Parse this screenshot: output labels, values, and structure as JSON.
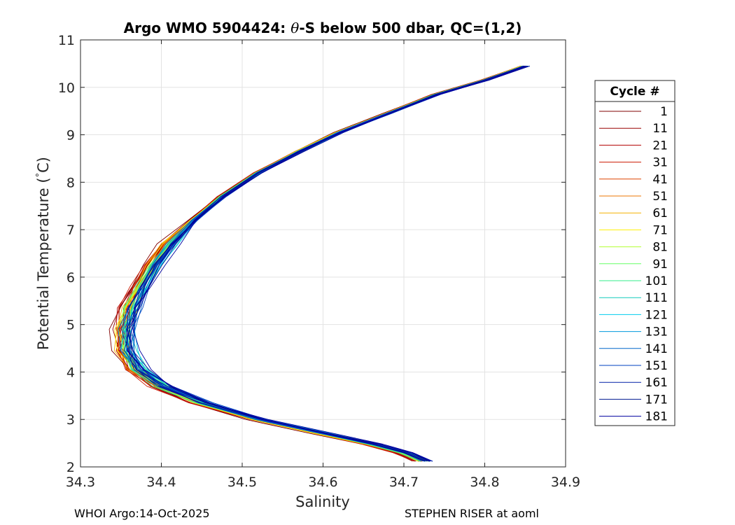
{
  "chart_data": {
    "type": "line",
    "title_prefix": "Argo WMO 5904424: ",
    "title_theta": "θ",
    "title_suffix": "-S below 500 dbar,  QC=(1,2)",
    "xlabel": "Salinity",
    "ylabel_prefix": "Potential Temperature (",
    "ylabel_degree": "°",
    "ylabel_suffix": "C)",
    "xlim": [
      34.3,
      34.9
    ],
    "ylim": [
      2,
      11
    ],
    "xticks": [
      "34.3",
      "34.4",
      "34.5",
      "34.6",
      "34.7",
      "34.8",
      "34.9"
    ],
    "yticks": [
      "2",
      "3",
      "4",
      "5",
      "6",
      "7",
      "8",
      "9",
      "10",
      "11"
    ],
    "grid": true,
    "legend_title": "Cycle #",
    "legend_position": "right, outside the plot",
    "colors": {
      "c1": "#800000",
      "c11": "#990000",
      "c21": "#b30000",
      "c31": "#cc1a00",
      "c41": "#dd4400",
      "c51": "#ee7700",
      "c61": "#f5b000",
      "c71": "#fff000",
      "c81": "#b2ff33",
      "c91": "#66ff66",
      "c101": "#33ee88",
      "c111": "#11ccbb",
      "c121": "#00ccee",
      "c131": "#0099dd",
      "c141": "#0066cc",
      "c151": "#0040c0",
      "c161": "#0020a8",
      "c171": "#001890",
      "c181": "#0000a0"
    },
    "series": [
      {
        "name": "1",
        "color_key": "c1",
        "shift": -0.01
      },
      {
        "name": "11",
        "color_key": "c11",
        "shift": -0.008
      },
      {
        "name": "21",
        "color_key": "c21",
        "shift": -0.006
      },
      {
        "name": "31",
        "color_key": "c31",
        "shift": -0.006
      },
      {
        "name": "41",
        "color_key": "c41",
        "shift": -0.005
      },
      {
        "name": "51",
        "color_key": "c51",
        "shift": -0.004
      },
      {
        "name": "61",
        "color_key": "c61",
        "shift": -0.003
      },
      {
        "name": "71",
        "color_key": "c71",
        "shift": -0.002
      },
      {
        "name": "81",
        "color_key": "c81",
        "shift": -0.001
      },
      {
        "name": "91",
        "color_key": "c91",
        "shift": 0.0
      },
      {
        "name": "101",
        "color_key": "c101",
        "shift": 0.001
      },
      {
        "name": "111",
        "color_key": "c111",
        "shift": 0.003
      },
      {
        "name": "121",
        "color_key": "c121",
        "shift": 0.006
      },
      {
        "name": "131",
        "color_key": "c131",
        "shift": 0.004
      },
      {
        "name": "141",
        "color_key": "c141",
        "shift": 0.003
      },
      {
        "name": "151",
        "color_key": "c151",
        "shift": 0.004
      },
      {
        "name": "161",
        "color_key": "c161",
        "shift": 0.005
      },
      {
        "name": "171",
        "color_key": "c171",
        "shift": 0.006
      },
      {
        "name": "181",
        "color_key": "c181",
        "shift": 0.007
      }
    ],
    "base_profile": [
      {
        "x": 34.849,
        "y": 10.45
      },
      {
        "x": 34.8,
        "y": 10.15
      },
      {
        "x": 34.74,
        "y": 9.85
      },
      {
        "x": 34.68,
        "y": 9.45
      },
      {
        "x": 34.62,
        "y": 9.05
      },
      {
        "x": 34.57,
        "y": 8.65
      },
      {
        "x": 34.52,
        "y": 8.2
      },
      {
        "x": 34.475,
        "y": 7.7
      },
      {
        "x": 34.44,
        "y": 7.2
      },
      {
        "x": 34.41,
        "y": 6.7
      },
      {
        "x": 34.39,
        "y": 6.25
      },
      {
        "x": 34.375,
        "y": 5.8
      },
      {
        "x": 34.362,
        "y": 5.35
      },
      {
        "x": 34.355,
        "y": 4.9
      },
      {
        "x": 34.356,
        "y": 4.45
      },
      {
        "x": 34.37,
        "y": 4.05
      },
      {
        "x": 34.4,
        "y": 3.7
      },
      {
        "x": 34.45,
        "y": 3.35
      },
      {
        "x": 34.52,
        "y": 3.0
      },
      {
        "x": 34.6,
        "y": 2.7
      },
      {
        "x": 34.66,
        "y": 2.48
      },
      {
        "x": 34.7,
        "y": 2.3
      },
      {
        "x": 34.725,
        "y": 2.12
      }
    ]
  },
  "footer": {
    "left": "WHOI Argo:14-Oct-2025",
    "right": "STEPHEN RISER at aoml"
  }
}
